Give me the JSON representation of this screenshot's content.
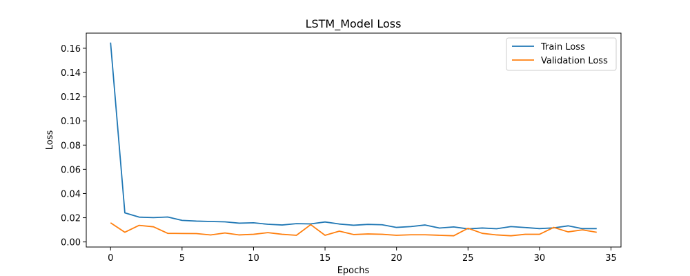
{
  "chart_data": {
    "type": "line",
    "title": "LSTM_Model Loss",
    "xlabel": "Epochs",
    "ylabel": "Loss",
    "xlim": [
      -1.7,
      35.7
    ],
    "ylim": [
      -0.0042,
      0.1725
    ],
    "xticks": [
      0,
      5,
      10,
      15,
      20,
      25,
      30,
      35
    ],
    "yticks": [
      0.0,
      0.02,
      0.04,
      0.06,
      0.08,
      0.1,
      0.12,
      0.14,
      0.16
    ],
    "grid": false,
    "legend_position": "top-right",
    "x": [
      0,
      1,
      2,
      3,
      4,
      5,
      6,
      7,
      8,
      9,
      10,
      11,
      12,
      13,
      14,
      15,
      16,
      17,
      18,
      19,
      20,
      21,
      22,
      23,
      24,
      25,
      26,
      27,
      28,
      29,
      30,
      31,
      32,
      33,
      34
    ],
    "series": [
      {
        "name": "Train Loss",
        "color": "#1f77b4",
        "values": [
          0.1647,
          0.024,
          0.0205,
          0.0201,
          0.0206,
          0.0178,
          0.0172,
          0.0169,
          0.0166,
          0.0155,
          0.0158,
          0.0146,
          0.014,
          0.0151,
          0.0149,
          0.0165,
          0.0148,
          0.0138,
          0.0145,
          0.0142,
          0.012,
          0.0127,
          0.014,
          0.0115,
          0.0124,
          0.0108,
          0.0115,
          0.0109,
          0.0127,
          0.0119,
          0.011,
          0.0116,
          0.0133,
          0.011,
          0.011
        ]
      },
      {
        "name": "Validation Loss",
        "color": "#ff7f0e",
        "values": [
          0.0158,
          0.008,
          0.0137,
          0.0125,
          0.0071,
          0.007,
          0.0069,
          0.0058,
          0.0074,
          0.0058,
          0.0063,
          0.0077,
          0.0063,
          0.0055,
          0.0143,
          0.0055,
          0.0089,
          0.0061,
          0.0066,
          0.0063,
          0.0055,
          0.0059,
          0.0059,
          0.0055,
          0.0051,
          0.0113,
          0.0071,
          0.0058,
          0.0051,
          0.0063,
          0.0063,
          0.012,
          0.0083,
          0.01,
          0.008
        ]
      }
    ]
  }
}
